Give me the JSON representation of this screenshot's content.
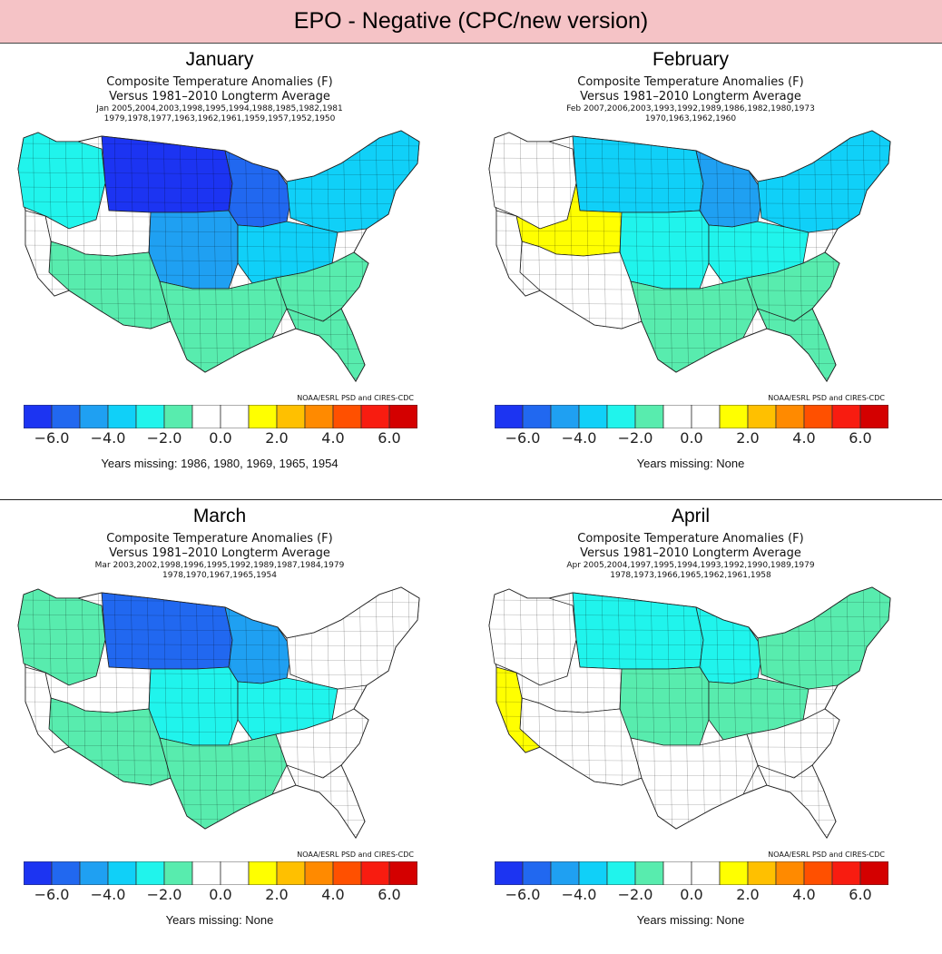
{
  "header": {
    "title": "EPO - Negative (CPC/new version)"
  },
  "chart_data": [
    {
      "type": "heatmap",
      "title": "January",
      "subtitle1": "Composite Temperature Anomalies (F)",
      "subtitle2": "Versus 1981–2010 Longterm Average",
      "years_line1": "Jan  2005,2004,2003,1998,1995,1994,1988,1985,1982,1981",
      "years_line2": "1979,1978,1977,1963,1962,1961,1959,1957,1952,1950",
      "credit": "NOAA/ESRL PSD and CIRES-CDC",
      "missing": "Years missing: 1986, 1980, 1969, 1965, 1954",
      "region_anomalies_F": {
        "northern_plains": -6.5,
        "upper_midwest": -5.5,
        "northwest": -3.0,
        "great_basin": 0,
        "central_plains": -4.5,
        "midwest": -4.0,
        "northeast": -3.5,
        "southwest": -1.5,
        "south_central": -1.5,
        "southeast": -1.5,
        "florida": -1.5
      }
    },
    {
      "type": "heatmap",
      "title": "February",
      "subtitle1": "Composite Temperature Anomalies (F)",
      "subtitle2": "Versus 1981–2010 Longterm Average",
      "years_line1": "Feb  2007,2006,2003,1993,1992,1989,1986,1982,1980,1973",
      "years_line2": "1970,1963,1962,1960",
      "credit": "NOAA/ESRL PSD and CIRES-CDC",
      "missing": "Years missing: None",
      "region_anomalies_F": {
        "northern_plains": -3.5,
        "upper_midwest": -4.5,
        "northwest": 0,
        "great_basin": 1.0,
        "central_plains": -2.5,
        "midwest": -3.0,
        "northeast": -4.0,
        "southwest": 0,
        "south_central": -1.5,
        "southeast": -1.5,
        "florida": -1.5
      }
    },
    {
      "type": "heatmap",
      "title": "March",
      "subtitle1": "Composite Temperature Anomalies (F)",
      "subtitle2": "Versus 1981–2010 Longterm Average",
      "years_line1": "Mar  2003,2002,1998,1996,1995,1992,1989,1987,1984,1979",
      "years_line2": "1978,1970,1967,1965,1954",
      "credit": "NOAA/ESRL PSD and CIRES-CDC",
      "missing": "Years missing: None",
      "region_anomalies_F": {
        "northern_plains": -5.5,
        "upper_midwest": -4.5,
        "northwest": -1.5,
        "great_basin": 0,
        "central_plains": -3.0,
        "midwest": -2.5,
        "northeast": 0,
        "southwest": -1.5,
        "south_central": -1.5,
        "southeast": 0,
        "florida": 0
      }
    },
    {
      "type": "heatmap",
      "title": "April",
      "subtitle1": "Composite Temperature Anomalies (F)",
      "subtitle2": "Versus 1981–2010 Longterm Average",
      "years_line1": "Apr  2005,2004,1997,1995,1994,1993,1992,1990,1989,1979",
      "years_line2": "1978,1973,1966,1965,1962,1961,1958",
      "credit": "NOAA/ESRL PSD and CIRES-CDC",
      "missing": "Years missing: None",
      "region_anomalies_F": {
        "northern_plains": -2.5,
        "upper_midwest": -2.5,
        "northwest": 0,
        "great_basin": 0,
        "california": 1.0,
        "central_plains": -1.5,
        "midwest": -1.5,
        "northeast": -1.5,
        "southwest": 0,
        "south_central": 0,
        "southeast": 0,
        "florida": 0
      }
    }
  ],
  "colorbar": {
    "colors": [
      "#1c34f2",
      "#2168f0",
      "#1fa0f2",
      "#10d0f8",
      "#20f4ec",
      "#58ecae",
      "#ffffff",
      "#ffffff",
      "#ffff00",
      "#ffc000",
      "#ff8a00",
      "#ff5000",
      "#f81c10",
      "#d40000"
    ],
    "ticks": [
      "−6.0",
      "−4.0",
      "−2.0",
      "0.0",
      "2.0",
      "4.0",
      "6.0"
    ],
    "tick_values": [
      -6,
      -4,
      -2,
      0,
      2,
      4,
      6
    ],
    "range": [
      -7,
      7
    ]
  }
}
